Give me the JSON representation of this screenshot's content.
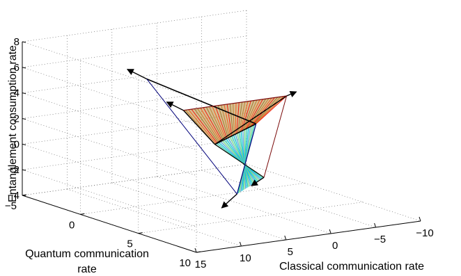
{
  "chart_data": {
    "type": "surface3d",
    "xlabel": "Classical communication rate",
    "ylabel": "Quantum communication rate",
    "ylabel_lines": [
      "Quantum communication",
      "rate"
    ],
    "zlabel": "Entanglement consumption rate",
    "xlim": [
      -10,
      15
    ],
    "ylim": [
      -5,
      10
    ],
    "zlim": [
      -4,
      8
    ],
    "x_ticks": [
      "−10",
      "−5",
      "0",
      "5",
      "10",
      "15"
    ],
    "y_ticks": [
      "−5",
      "0",
      "5",
      "10"
    ],
    "z_ticks": [
      "8",
      "6",
      "4",
      "2",
      "0",
      "−2",
      "−4"
    ],
    "grid": true,
    "vertices": {
      "V0": [
        0,
        0,
        0
      ],
      "V1": [
        -2,
        2,
        2
      ],
      "V2": [
        3.5,
        0,
        3
      ],
      "V3": [
        5,
        -2,
        5
      ],
      "V4": [
        -8,
        0,
        3
      ],
      "V5": [
        4,
        5,
        -2
      ],
      "V6": [
        1,
        5,
        -1
      ]
    },
    "rays": [
      {
        "from": "V3",
        "direction": "up"
      },
      {
        "from": "V2",
        "direction": "left-back"
      },
      {
        "from": "V4",
        "direction": "right"
      },
      {
        "from": "V5",
        "direction": "down"
      },
      {
        "from": "V6",
        "direction": "down-right"
      }
    ],
    "colors": {
      "upper_face": [
        "#f02010",
        "#f06020",
        "#c08030",
        "#a07830"
      ],
      "lower_face": [
        "#00c8e8",
        "#30d0b0",
        "#80e080",
        "#60a0e0"
      ],
      "edge_dark": "#000000",
      "edge_red": "#7a0a0a",
      "edge_blue": "#00007a"
    }
  }
}
